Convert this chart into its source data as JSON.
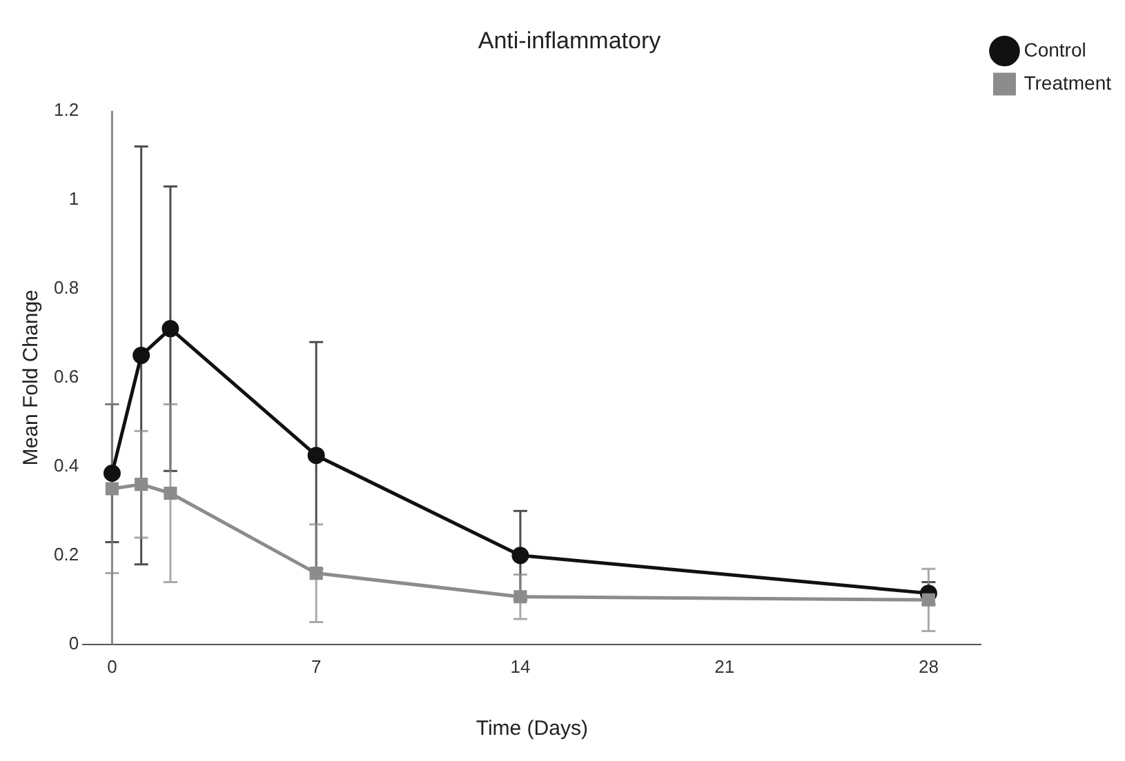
{
  "chart_data": {
    "type": "line",
    "title": "Anti-inflammatory",
    "xlabel": "Time (Days)",
    "ylabel": "Mean Fold Change",
    "x": [
      0,
      1,
      2,
      7,
      14,
      28
    ],
    "xlim": [
      -1,
      29.8
    ],
    "xticks": [
      0,
      7,
      14,
      21,
      28
    ],
    "ylim": [
      0,
      1.2
    ],
    "yticks": [
      {
        "value": 0,
        "label": "0"
      },
      {
        "value": 0.2,
        "label": "0.2"
      },
      {
        "value": 0.4,
        "label": "0.4"
      },
      {
        "value": 0.6,
        "label": "0.6"
      },
      {
        "value": 0.8,
        "label": "0.8"
      },
      {
        "value": 1,
        "label": "1"
      },
      {
        "value": 1.2,
        "label": "1.2"
      }
    ],
    "grid": false,
    "legend": "top right",
    "series": [
      {
        "name": "Control",
        "color": "#111111",
        "marker": "circle",
        "values": [
          0.385,
          0.65,
          0.71,
          0.425,
          0.2,
          0.115
        ],
        "errors": [
          0.155,
          0.47,
          0.32,
          0.255,
          0.1,
          0.025
        ]
      },
      {
        "name": "Treatment",
        "color": "#8c8c8c",
        "marker": "square",
        "values": [
          0.35,
          0.36,
          0.34,
          0.16,
          0.107,
          0.1
        ],
        "errors": [
          0.19,
          0.12,
          0.2,
          0.11,
          0.05,
          0.07
        ]
      }
    ]
  }
}
